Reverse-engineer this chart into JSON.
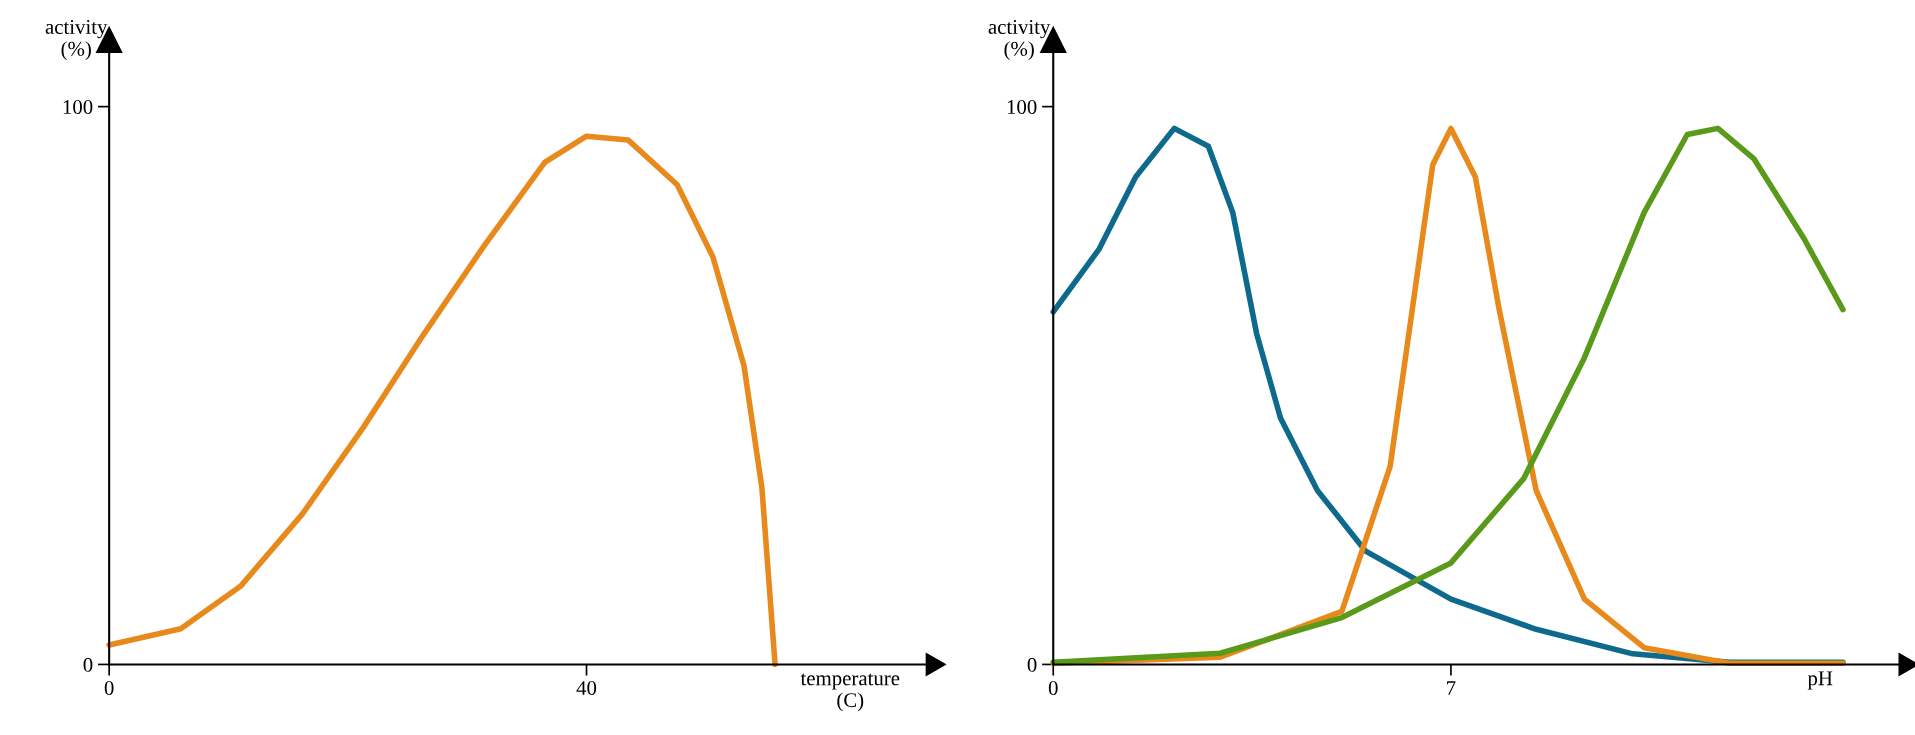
{
  "chart_data": [
    {
      "type": "line",
      "xlabel": "temperature\n(C)",
      "ylabel": "activity\n(%)",
      "xlim": [
        0,
        69
      ],
      "ylim": [
        0,
        112
      ],
      "xticks": [
        0,
        40
      ],
      "yticks": [
        0,
        100
      ],
      "grid": false,
      "legend": false,
      "marker": "none",
      "line_style": "solid",
      "x": [
        0,
        6,
        11,
        16.2,
        21.3,
        26.3,
        31.4,
        36.5,
        40,
        43.5,
        47.6,
        50.6,
        53.2,
        54.7,
        55.8
      ],
      "series": [
        {
          "color": "#e8891c",
          "values": [
            3.5,
            6.4,
            14,
            27,
            42.5,
            59,
            75,
            90,
            94.7,
            94,
            86,
            73,
            53.5,
            31.6,
            0
          ]
        }
      ]
    },
    {
      "type": "line",
      "xlabel": "pH",
      "ylabel": "activity\n(%)",
      "xlim": [
        0,
        15
      ],
      "ylim": [
        0,
        112
      ],
      "xticks": [
        0,
        7
      ],
      "yticks": [
        0,
        100
      ],
      "grid": false,
      "legend": false,
      "marker": "none",
      "line_style": "solid",
      "series": [
        {
          "color": "#0e6a8c",
          "x": [
            0,
            0.81,
            1.45,
            2.13,
            2.73,
            3.16,
            3.58,
            4.0,
            4.65,
            5.5,
            7,
            8.5,
            10.2,
            11.9,
            13.9
          ],
          "values": [
            63.2,
            74.5,
            87.4,
            96.1,
            92.9,
            81,
            59.3,
            44.2,
            31.2,
            20.3,
            11.7,
            6.3,
            1.9,
            0.4,
            0.4
          ]
        },
        {
          "color": "#e8891c",
          "x": [
            0,
            2.94,
            5.08,
            5.93,
            6.47,
            6.68,
            7,
            7.43,
            7.85,
            8.5,
            9.35,
            10.4,
            11.9,
            13.9
          ],
          "values": [
            0.2,
            1.3,
            9.5,
            35.5,
            74.5,
            89.6,
            96.1,
            87.4,
            63.6,
            31.2,
            11.7,
            3,
            0.2,
            0.2
          ]
        },
        {
          "color": "#5a9a1a",
          "x": [
            0,
            2.94,
            5.08,
            7,
            8.28,
            9.35,
            10.4,
            11.16,
            11.7,
            12.33,
            13.2,
            13.9
          ],
          "values": [
            0.4,
            2,
            8.4,
            18.2,
            33.3,
            55,
            81,
            95,
            96.1,
            90.7,
            76.6,
            63.6
          ]
        }
      ]
    }
  ]
}
